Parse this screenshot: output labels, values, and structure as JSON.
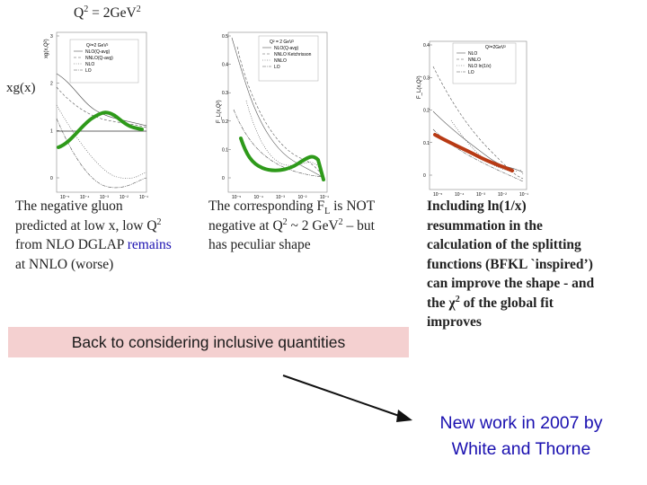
{
  "top_label": {
    "q2": "Q",
    "exp1": "2",
    "eq": " = 2GeV",
    "exp2": "2"
  },
  "ylabel_left": "xg(x)",
  "panels": [
    {
      "ytitle": "xg(x,Q²)",
      "inset": "Q²=2 GeV²",
      "legend": [
        "NLO(Q-avg)",
        "NNLO(Q-avg)",
        "NLO",
        "LO"
      ],
      "yticks": [
        "3",
        "2",
        "1",
        "0"
      ],
      "xticks": [
        "10⁻⁵",
        "10⁻⁴",
        "10⁻³",
        "10⁻²",
        "10⁻¹"
      ]
    },
    {
      "ytitle": "F_L(x,Q²)",
      "inset": "Q² = 2 GeV²",
      "legend": [
        "NLO(Q-avg)",
        "NNLO Ketchrisson",
        "NNLO",
        "LO"
      ],
      "yticks": [
        "0.5",
        "0.4",
        "0.3",
        "0.2",
        "0.1",
        "0"
      ],
      "xticks": [
        "10⁻⁵",
        "10⁻⁴",
        "10⁻³",
        "10⁻²",
        "10⁻¹"
      ]
    },
    {
      "ytitle": "F_L(x,Q²)",
      "inset": "Q²=2GeV²",
      "legend": [
        "NLO",
        "NNLO",
        "NLO ln(1/x)",
        "LO"
      ],
      "yticks": [
        "0.4",
        "0.3",
        "0.2",
        "0.1",
        "0"
      ],
      "xticks": [
        "10⁻⁵",
        "10⁻⁴",
        "10⁻³",
        "10⁻²",
        "10⁻¹"
      ]
    }
  ],
  "col1": {
    "l1": "The negative gluon",
    "l2a": "predicted at low x, low Q",
    "l2sup": "2",
    "l3a": "from NLO DGLAP ",
    "l3b": "remains",
    "l4": "at NNLO (worse)"
  },
  "col2": {
    "l1a": "The corresponding F",
    "l1sub": "L",
    "l1b": " is NOT",
    "l2a": "negative at Q",
    "l2sup1": "2",
    "l2b": " ~ 2 GeV",
    "l2sup2": "2",
    "l2c": " – but",
    "l3": "has peculiar shape"
  },
  "col3": {
    "l1": "Including ln(1/x)",
    "l2": "resummation in the",
    "l3": "calculation of the splitting",
    "l4": "functions (BFKL `inspired’)",
    "l5": "can improve the shape - and",
    "l6a": "the ",
    "l6chi": "χ",
    "l6sup": "2",
    "l6b": " of the global fit",
    "l7": "improves"
  },
  "banner": "Back to considering inclusive quantities",
  "newwork": {
    "l1": "New work in 2007 by",
    "l2": "White and Thorne"
  },
  "colors": {
    "green": "#2e9a1a",
    "red": "#b83a14",
    "banner_bg": "#f4d0d0",
    "blue_text": "#1a10b0"
  }
}
